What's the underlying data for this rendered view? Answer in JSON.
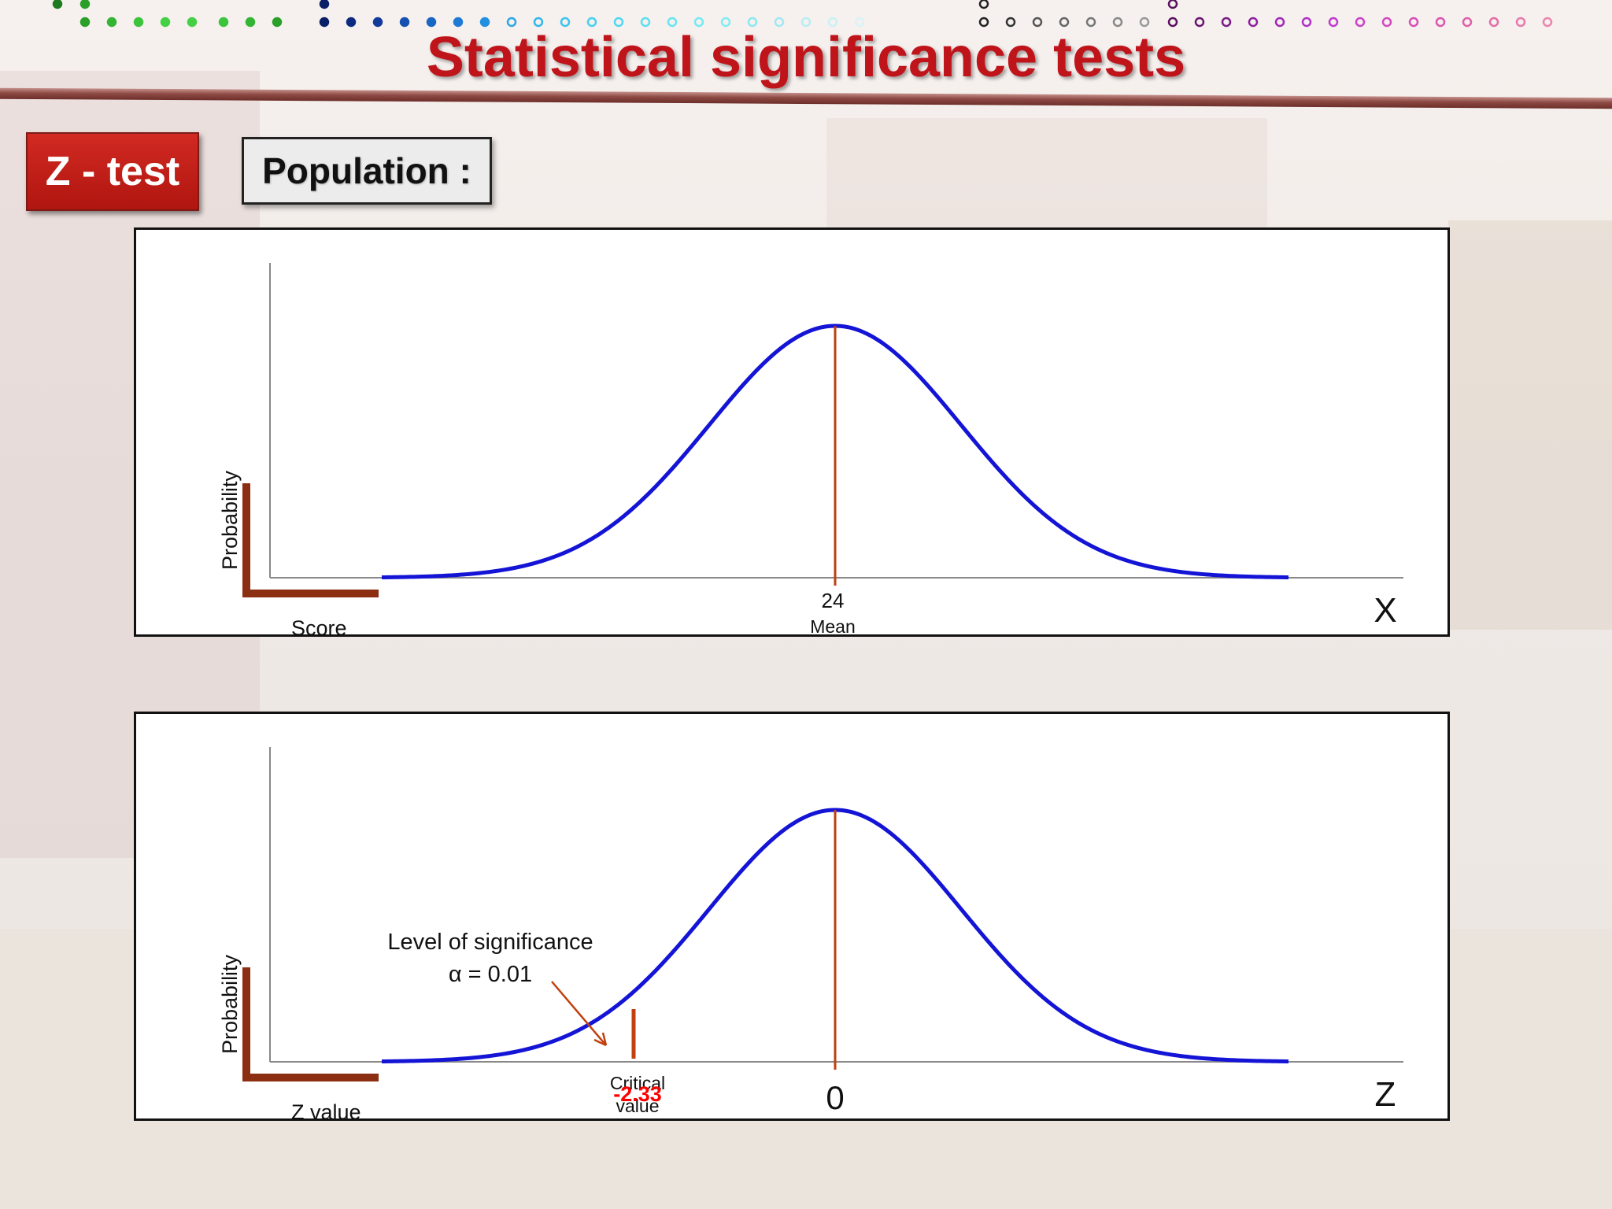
{
  "title": "Statistical significance tests",
  "badge": "Z - test",
  "population_label": "Population :",
  "colors": {
    "title": "#c0141b",
    "curve": "#1414d6",
    "marker": "#c0400e",
    "axis_bracket": "#8b2e12",
    "critical_value": "#ff0000"
  },
  "top_diagram": {
    "y_label": "Probability",
    "x_label": "Score",
    "axis_letter": "X",
    "mean_value": "24",
    "mean_label": "Mean"
  },
  "bottom_diagram": {
    "y_label": "Probability",
    "x_label": "Z value",
    "axis_letter": "Z",
    "center_value": "0",
    "significance_line1": "Level of significance",
    "significance_line2": "α  = 0.01",
    "critical_label_line1": "Critical",
    "critical_label_line2": "value",
    "critical_value": "-2.33"
  }
}
